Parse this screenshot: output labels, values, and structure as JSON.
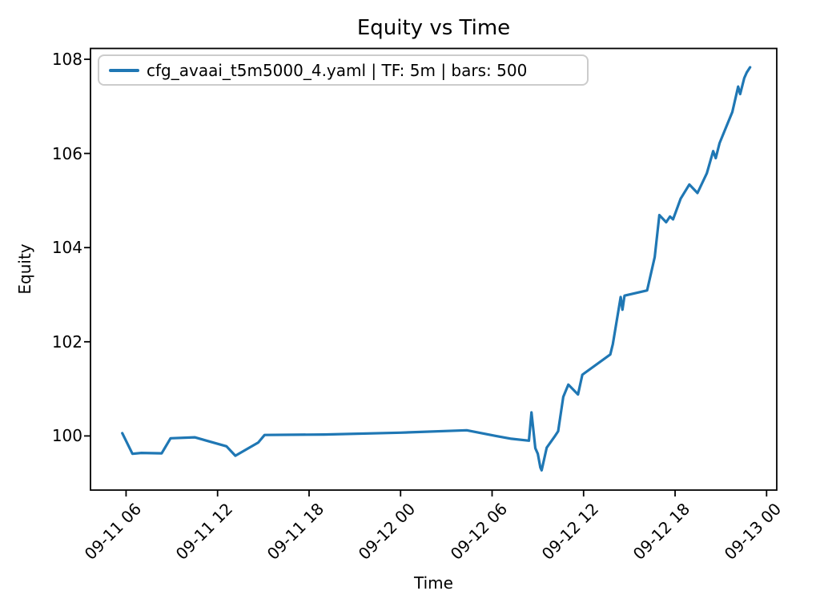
{
  "window": {
    "background": "#ffffff"
  },
  "chart_data": {
    "type": "line",
    "title": "Equity vs Time",
    "xlabel": "Time",
    "ylabel": "Equity",
    "grid": false,
    "legend_position": "upper left",
    "axis_color": "#000000",
    "x_tick_labels": [
      "09-11 06",
      "09-11 12",
      "09-11 18",
      "09-12 00",
      "09-12 06",
      "09-12 12",
      "09-12 18",
      "09-13 00"
    ],
    "y_tick_labels": [
      "100",
      "102",
      "104",
      "106",
      "108"
    ],
    "xlim": [
      "09-11 03:40",
      "09-13 00:40"
    ],
    "ylim": [
      98.85,
      108.23
    ],
    "series": [
      {
        "name": "cfg_avaai_t5m5000_4.yaml | TF: 5m | bars: 500",
        "color": "#1f77b4",
        "points": [
          [
            "09-11 05:45",
            100.06
          ],
          [
            "09-11 06:25",
            99.62
          ],
          [
            "09-11 07:00",
            99.64
          ],
          [
            "09-11 08:20",
            99.63
          ],
          [
            "09-11 08:55",
            99.95
          ],
          [
            "09-11 10:30",
            99.97
          ],
          [
            "09-11 12:35",
            99.78
          ],
          [
            "09-11 13:10",
            99.58
          ],
          [
            "09-11 14:40",
            99.86
          ],
          [
            "09-11 15:05",
            100.02
          ],
          [
            "09-11 19:00",
            100.03
          ],
          [
            "09-12 00:00",
            100.07
          ],
          [
            "09-12 04:20",
            100.12
          ],
          [
            "09-12 06:15",
            100.0
          ],
          [
            "09-12 07:15",
            99.94
          ],
          [
            "09-12 08:25",
            99.9
          ],
          [
            "09-12 08:35",
            100.5
          ],
          [
            "09-12 08:50",
            99.74
          ],
          [
            "09-12 09:00",
            99.62
          ],
          [
            "09-12 09:10",
            99.33
          ],
          [
            "09-12 09:15",
            99.27
          ],
          [
            "09-12 09:35",
            99.75
          ],
          [
            "09-12 10:05",
            99.98
          ],
          [
            "09-12 10:20",
            100.1
          ],
          [
            "09-12 10:40",
            100.83
          ],
          [
            "09-12 11:00",
            101.09
          ],
          [
            "09-12 11:38",
            100.88
          ],
          [
            "09-12 11:55",
            101.3
          ],
          [
            "09-12 12:05",
            101.34
          ],
          [
            "09-12 13:45",
            101.73
          ],
          [
            "09-12 13:55",
            101.95
          ],
          [
            "09-12 14:26",
            102.95
          ],
          [
            "09-12 14:33",
            102.68
          ],
          [
            "09-12 14:41",
            102.98
          ],
          [
            "09-12 16:10",
            103.09
          ],
          [
            "09-12 16:40",
            103.8
          ],
          [
            "09-12 16:58",
            104.69
          ],
          [
            "09-12 17:25",
            104.54
          ],
          [
            "09-12 17:40",
            104.66
          ],
          [
            "09-12 17:52",
            104.6
          ],
          [
            "09-12 18:22",
            105.04
          ],
          [
            "09-12 18:56",
            105.34
          ],
          [
            "09-12 19:28",
            105.16
          ],
          [
            "09-12 20:05",
            105.58
          ],
          [
            "09-12 20:30",
            106.05
          ],
          [
            "09-12 20:40",
            105.9
          ],
          [
            "09-12 20:55",
            106.22
          ],
          [
            "09-12 21:45",
            106.88
          ],
          [
            "09-12 22:08",
            107.42
          ],
          [
            "09-12 22:16",
            107.26
          ],
          [
            "09-12 22:32",
            107.6
          ],
          [
            "09-12 22:42",
            107.72
          ],
          [
            "09-12 22:55",
            107.83
          ]
        ]
      }
    ]
  }
}
